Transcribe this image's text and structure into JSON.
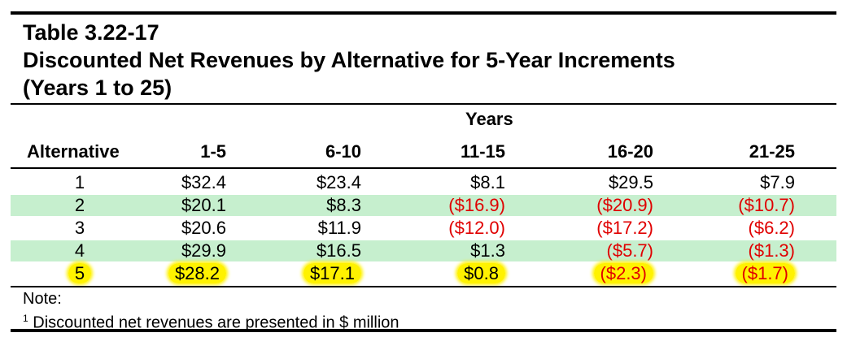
{
  "title": {
    "line1": "Table 3.22-17",
    "line2": "Discounted Net Revenues by Alternative for 5-Year Increments",
    "line3": "(Years 1 to 25)"
  },
  "header": {
    "group_label": "Years",
    "columns": [
      "Alternative",
      "1-5",
      "6-10",
      "11-15",
      "16-20",
      "21-25"
    ]
  },
  "rows": [
    {
      "alt": "1",
      "band": false,
      "highlight": false,
      "values": [
        "$32.4",
        "$23.4",
        "$8.1",
        "$29.5",
        "$7.9"
      ],
      "negative": [
        false,
        false,
        false,
        false,
        false
      ]
    },
    {
      "alt": "2",
      "band": true,
      "highlight": false,
      "values": [
        "$20.1",
        "$8.3",
        "($16.9)",
        "($20.9)",
        "($10.7)"
      ],
      "negative": [
        false,
        false,
        true,
        true,
        true
      ]
    },
    {
      "alt": "3",
      "band": false,
      "highlight": false,
      "values": [
        "$20.6",
        "$11.9",
        "($12.0)",
        "($17.2)",
        "($6.2)"
      ],
      "negative": [
        false,
        false,
        true,
        true,
        true
      ]
    },
    {
      "alt": "4",
      "band": true,
      "highlight": false,
      "values": [
        "$29.9",
        "$16.5",
        "$1.3",
        "($5.7)",
        "($1.3)"
      ],
      "negative": [
        false,
        false,
        false,
        true,
        true
      ]
    },
    {
      "alt": "5",
      "band": false,
      "highlight": true,
      "values": [
        "$28.2",
        "$17.1",
        "$0.8",
        "($2.3)",
        "($1.7)"
      ],
      "negative": [
        false,
        false,
        false,
        true,
        true
      ]
    }
  ],
  "colors": {
    "band": "#c6efce",
    "negative": "#e00000",
    "highlight": "#fff200"
  },
  "note": {
    "label": "Note:",
    "sup": "1",
    "text": " Discounted net revenues are presented in $ million"
  }
}
